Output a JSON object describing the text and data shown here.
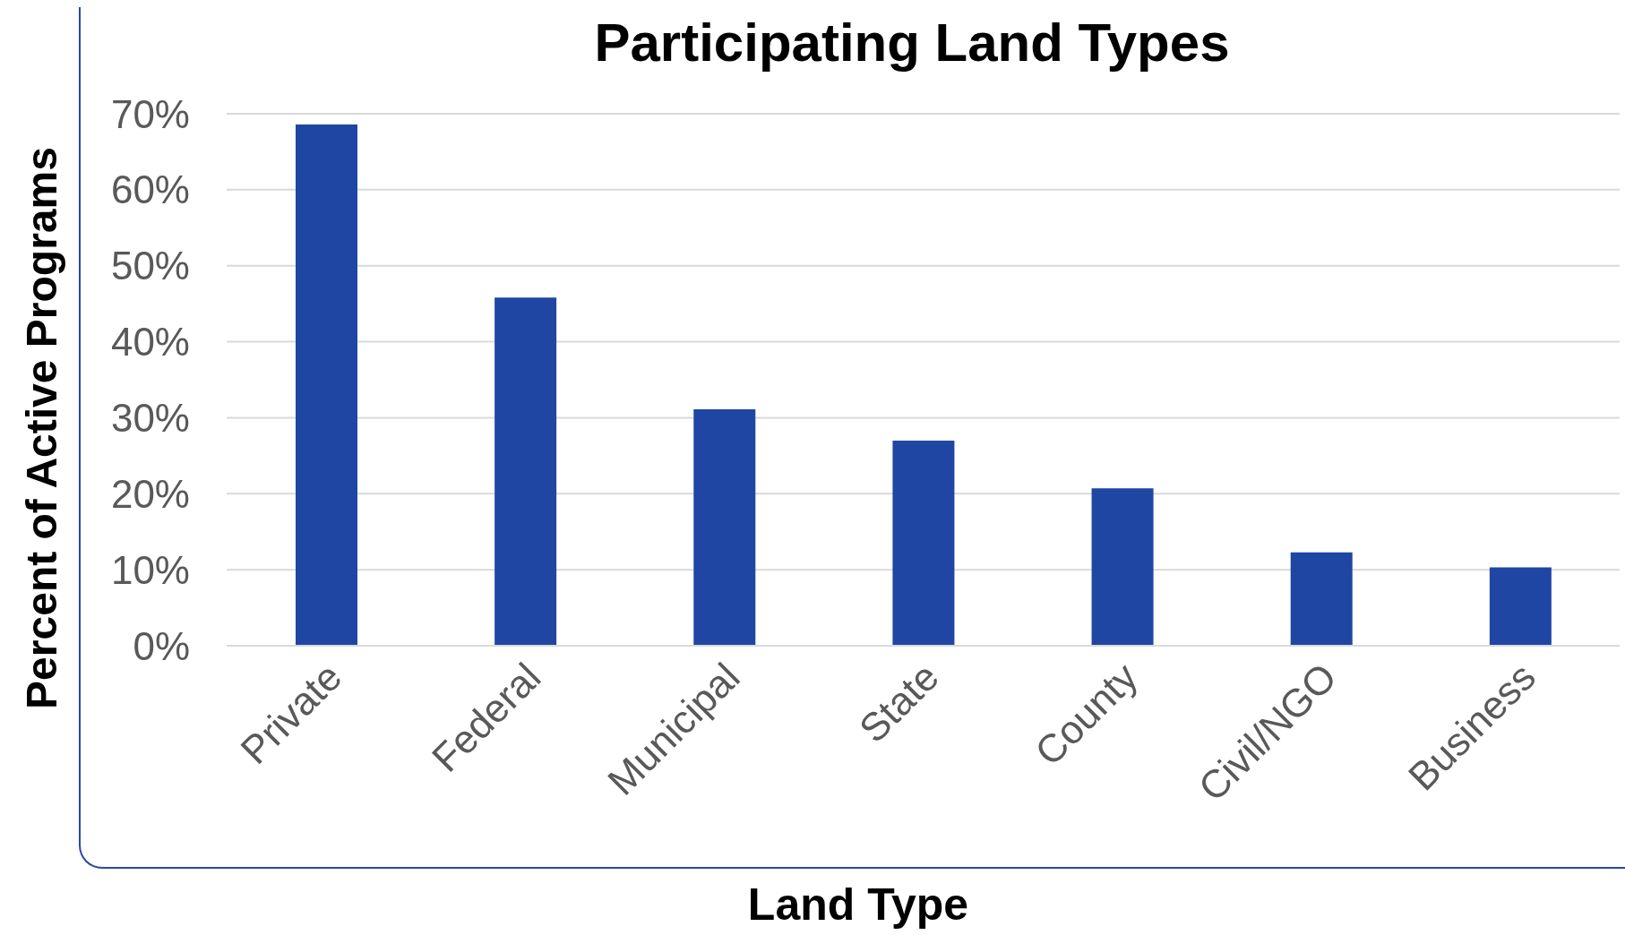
{
  "chart_data": {
    "type": "bar",
    "title": "Participating Land Types",
    "xlabel": "Land Type",
    "ylabel": "Percent of Active Programs",
    "categories": [
      "Private",
      "Federal",
      "Municipal",
      "State",
      "County",
      "Civil/NGO",
      "Business"
    ],
    "values": [
      68.6,
      45.8,
      31.1,
      27,
      20.7,
      12.3,
      10.3
    ],
    "color": "#1f46a3",
    "ylim": [
      0,
      70
    ],
    "yticks": [
      {
        "value": 0,
        "label": "0%"
      },
      {
        "value": 10,
        "label": "10%"
      },
      {
        "value": 20,
        "label": "20%"
      },
      {
        "value": 30,
        "label": "30%"
      },
      {
        "value": 40,
        "label": "40%"
      },
      {
        "value": 50,
        "label": "50%"
      },
      {
        "value": 60,
        "label": "60%"
      },
      {
        "value": 70,
        "label": "70%"
      }
    ],
    "grid": "y"
  }
}
